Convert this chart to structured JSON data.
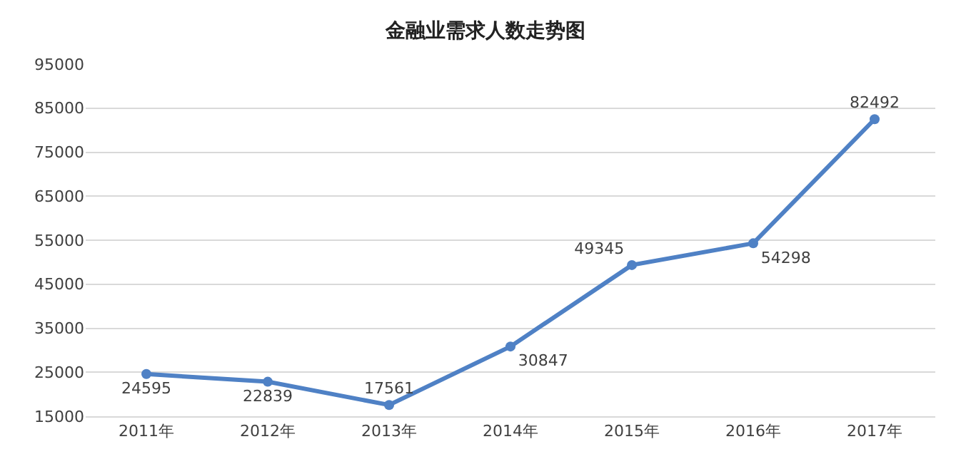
{
  "chart_data": {
    "type": "line",
    "title": "金融业需求人数走势图",
    "categories": [
      "2011年",
      "2012年",
      "2013年",
      "2014年",
      "2015年",
      "2016年",
      "2017年"
    ],
    "series": [
      {
        "color": "#4f81c5",
        "values": [
          24595,
          22839,
          17561,
          30847,
          49345,
          54298,
          82492
        ]
      }
    ],
    "ylim": [
      15000,
      95000
    ],
    "yticks": [
      15000,
      25000,
      35000,
      45000,
      55000,
      65000,
      75000,
      85000,
      95000
    ],
    "grid": "y",
    "marker": "circle",
    "line_style": "solid",
    "data_labels": true
  }
}
